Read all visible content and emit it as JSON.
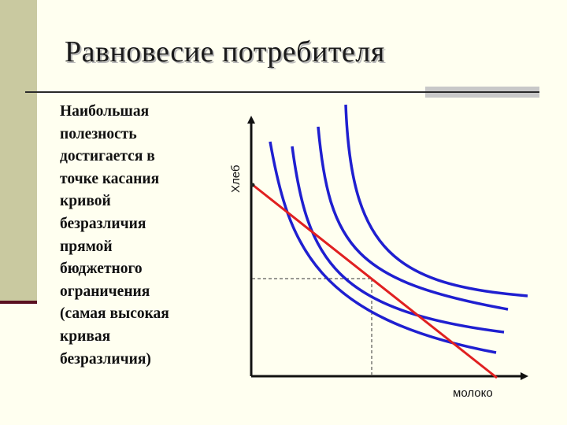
{
  "slide": {
    "title": "Равновесие потребителя",
    "text_lines": [
      "Наибольшая",
      "полезность",
      "достигается в",
      "точке касания",
      "кривой",
      "безразличия",
      "прямой",
      "бюджетного",
      "ограничения",
      "(самая высокая",
      "кривая",
      "безразличия)"
    ]
  },
  "diagram": {
    "y_axis_label": "Хлеб",
    "x_axis_label": "молоко",
    "colors": {
      "indifference_curve": "#1f1fd0",
      "budget_line": "#e02020",
      "axis": "#111111",
      "guide": "#333333",
      "accent_band": "#c9c9a0"
    }
  }
}
